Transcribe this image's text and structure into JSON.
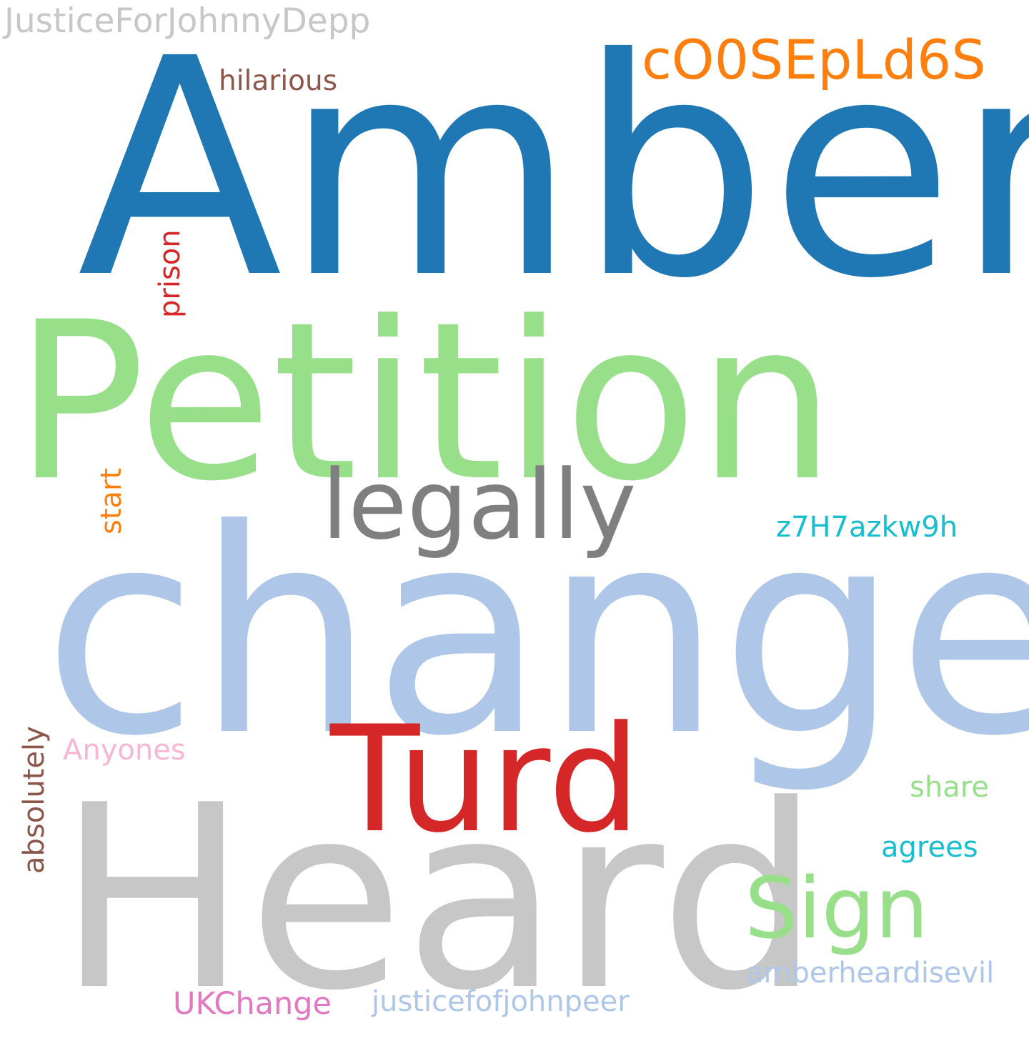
{
  "cloud": {
    "justiceforjohnnydepp": "JusticeForJohnnyDepp",
    "amber": "Amber",
    "c00sepld6s": "cO0SEpLd6S",
    "hilarious": "hilarious",
    "prison": "prison",
    "petition": "Petition",
    "legally": "legally",
    "start": "start",
    "z7h7azkw9h": "z7H7azkw9h",
    "change": "change",
    "absolutely": "absolutely",
    "anyones": "Anyones",
    "turd": "Turd",
    "share": "share",
    "agrees": "agrees",
    "heard": "Heard",
    "sign": "Sign",
    "amberheardisevil": "amberheardisevil",
    "ukchange": "UKChange",
    "justicefofjohnpeer": "justicefofjohnpeer"
  },
  "colors": {
    "blue": "#1f77b4",
    "light_blue": "#aec7e8",
    "orange": "#ff7f0e",
    "light_green": "#98df8a",
    "red": "#d62728",
    "gray": "#7f7f7f",
    "light_gray": "#c7c7c7",
    "brown": "#8c564b",
    "pink": "#f7b6d2",
    "magenta": "#e377c2",
    "cyan": "#17becf"
  }
}
